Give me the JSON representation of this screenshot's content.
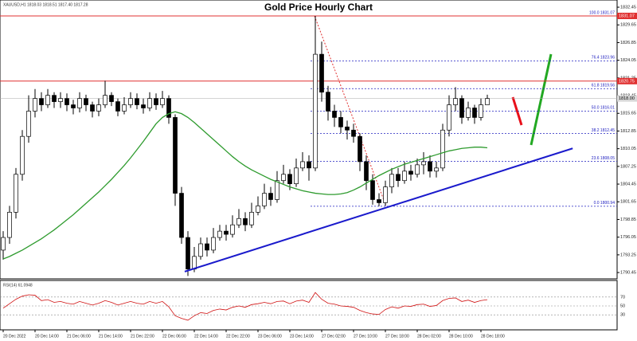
{
  "chart_data": {
    "type": "candlestick",
    "title": "Gold Price Hourly Chart",
    "info": "XAUUSD,H1  1818.03 1818.51 1817.40 1817.28",
    "categories": [
      "20 Dec 2022",
      null,
      null,
      null,
      null,
      "20 Dec 14:00",
      null,
      null,
      null,
      null,
      "21 Dec 06:00",
      null,
      null,
      null,
      null,
      "21 Dec 14:00",
      null,
      null,
      null,
      null,
      "21 Dec 22:00",
      null,
      null,
      null,
      null,
      "22 Dec 06:00",
      null,
      null,
      null,
      null,
      "22 Dec 14:00",
      null,
      null,
      null,
      null,
      "22 Dec 22:00",
      null,
      null,
      null,
      null,
      "23 Dec 06:00",
      null,
      null,
      null,
      null,
      "23 Dec 14:00",
      null,
      null,
      null,
      null,
      "27 Dec 02:00",
      null,
      null,
      null,
      null,
      "27 Dec 10:00",
      null,
      null,
      null,
      null,
      "27 Dec 18:00",
      null,
      null,
      null,
      null,
      "28 Dec 02:00",
      null,
      null,
      null,
      null,
      "28 Dec 10:00",
      null,
      null,
      null,
      null,
      "28 Dec 18:00",
      null
    ],
    "ohlc": {
      "up_color": "#ffffff",
      "down_color": "#000000",
      "open": [
        1794,
        1796,
        1800,
        1806,
        1812,
        1816,
        1818,
        1817,
        1818.5,
        1817.5,
        1818,
        1817,
        1816.5,
        1818,
        1817,
        1816,
        1817,
        1818.5,
        1817.5,
        1816,
        1817,
        1818,
        1817,
        1816.5,
        1818,
        1817,
        1818,
        1815,
        1803,
        1796,
        1791,
        1793,
        1795,
        1794,
        1796,
        1797,
        1796.5,
        1798,
        1799,
        1798,
        1800,
        1801,
        1803,
        1802,
        1805,
        1806,
        1804.5,
        1807,
        1808,
        1807,
        1825,
        1819,
        1816,
        1815,
        1813.5,
        1813,
        1812,
        1808,
        1805,
        1802,
        1801.5,
        1804,
        1806,
        1805,
        1806.5,
        1806,
        1807.5,
        1808,
        1806.5,
        1807,
        1813,
        1817,
        1818,
        1815,
        1816.5,
        1815,
        1817
      ],
      "high": [
        1797,
        1801,
        1807,
        1813,
        1818.5,
        1819.5,
        1819,
        1819.5,
        1819,
        1819,
        1818.8,
        1817.8,
        1819,
        1818.6,
        1817.5,
        1818,
        1820.8,
        1819,
        1818,
        1818.2,
        1819,
        1818.8,
        1818,
        1819,
        1818.8,
        1819.2,
        1818.5,
        1815.5,
        1804,
        1797,
        1794.5,
        1796,
        1796,
        1797.5,
        1798,
        1798,
        1799.5,
        1800.5,
        1800,
        1801.5,
        1802.5,
        1804.5,
        1804,
        1806.5,
        1807.5,
        1806.8,
        1808.5,
        1809.5,
        1809,
        1831.07,
        1827,
        1820,
        1817,
        1816,
        1814.5,
        1814,
        1812.5,
        1809,
        1806,
        1803,
        1805,
        1807,
        1807,
        1808,
        1807.5,
        1808.5,
        1809.5,
        1809,
        1808,
        1814,
        1818.5,
        1819.8,
        1818.5,
        1817.5,
        1817,
        1818,
        1818.6
      ],
      "low": [
        1792.5,
        1795,
        1799,
        1805,
        1811,
        1815,
        1816,
        1816.5,
        1816.5,
        1816.5,
        1816,
        1815.5,
        1815.8,
        1816,
        1815,
        1815.2,
        1816.5,
        1816.8,
        1815.2,
        1815.5,
        1816.5,
        1816.3,
        1815.6,
        1816,
        1816.2,
        1816.5,
        1814,
        1801,
        1795,
        1789.9,
        1790.5,
        1792.5,
        1793,
        1793.5,
        1795.5,
        1795.5,
        1796,
        1797.5,
        1797,
        1797.5,
        1799.5,
        1800.5,
        1801,
        1801.5,
        1804.5,
        1803.5,
        1804,
        1806.5,
        1805,
        1806.5,
        1817.5,
        1814.5,
        1813.5,
        1812.5,
        1811.5,
        1811,
        1806.5,
        1803.5,
        1801.2,
        1800.94,
        1801,
        1803,
        1804,
        1804.5,
        1805,
        1805.5,
        1806,
        1805.5,
        1805.5,
        1806.5,
        1812,
        1816,
        1814,
        1814.5,
        1814,
        1814.5,
        1817
      ],
      "close": [
        1796,
        1800,
        1806,
        1812,
        1816,
        1818,
        1817,
        1818.5,
        1817.5,
        1818,
        1817,
        1816.5,
        1818,
        1817,
        1816,
        1817,
        1818.5,
        1817.5,
        1816,
        1817,
        1818,
        1817,
        1816.5,
        1818,
        1817,
        1818,
        1815,
        1803,
        1796,
        1791,
        1793,
        1795,
        1794,
        1796,
        1797,
        1796.5,
        1798,
        1799,
        1798,
        1800,
        1801,
        1803,
        1802,
        1805,
        1806,
        1804.5,
        1807,
        1808,
        1807,
        1825,
        1819,
        1816,
        1815,
        1813.5,
        1813,
        1812,
        1808,
        1805,
        1802,
        1801.5,
        1804,
        1806,
        1805,
        1806.5,
        1806,
        1807.5,
        1808,
        1806.5,
        1807,
        1813,
        1817,
        1818,
        1815,
        1816.5,
        1815,
        1817,
        1818
      ]
    },
    "moving_average": {
      "color": "#2e9b2e",
      "values": [
        1792.6,
        1793.0,
        1793.5,
        1794.0,
        1794.6,
        1795.2,
        1795.8,
        1796.5,
        1797.2,
        1798.0,
        1798.8,
        1799.6,
        1800.5,
        1801.4,
        1802.3,
        1803.2,
        1804.2,
        1805.2,
        1806.3,
        1807.4,
        1808.6,
        1809.9,
        1811.2,
        1812.6,
        1814.0,
        1815.0,
        1815.6,
        1815.9,
        1815.6,
        1815.0,
        1814.2,
        1813.3,
        1812.4,
        1811.5,
        1810.6,
        1809.7,
        1808.8,
        1808.0,
        1807.3,
        1806.7,
        1806.2,
        1805.7,
        1805.2,
        1804.8,
        1804.4,
        1804.0,
        1803.7,
        1803.4,
        1803.2,
        1803.0,
        1802.9,
        1802.8,
        1802.8,
        1802.9,
        1803.1,
        1803.5,
        1804.0,
        1804.6,
        1805.2,
        1805.8,
        1806.3,
        1806.8,
        1807.2,
        1807.6,
        1807.9,
        1808.2,
        1808.5,
        1808.8,
        1809.1,
        1809.4,
        1809.7,
        1809.9,
        1810.1,
        1810.2,
        1810.3,
        1810.3,
        1810.2
      ]
    },
    "trendline": {
      "color": "#1a1acc",
      "x": [
        28.5,
        89.4
      ],
      "y": [
        1790.6,
        1810.1
      ]
    },
    "levels": {
      "color": "#e03030",
      "lines": [
        {
          "value": 1831.07,
          "label": "1831.07"
        },
        {
          "value": 1820.75,
          "label": "1820.75"
        }
      ]
    },
    "last_price": {
      "value": 1818,
      "label": "1818.00"
    },
    "fib": {
      "color": "#2020c0",
      "lines": [
        {
          "value": 1831.07,
          "label": "100.0 1831.07"
        },
        {
          "value": 1823.96,
          "label": "76.4 1823.96"
        },
        {
          "value": 1819.56,
          "label": "61.8 1819.56"
        },
        {
          "value": 1816.01,
          "label": "50.0 1816.01"
        },
        {
          "value": 1812.45,
          "label": "38.2 1812.45"
        },
        {
          "value": 1808.05,
          "label": "23.6 1808.05"
        },
        {
          "value": 1800.94,
          "label": "0.0 1800.94"
        }
      ]
    },
    "ylim": [
      1789.45,
      1833.59
    ],
    "yticks": [
      1790.45,
      1793.25,
      1796.05,
      1798.85,
      1801.65,
      1804.45,
      1807.25,
      1810.05,
      1812.85,
      1815.65,
      1818.45,
      1821.25,
      1824.05,
      1826.85,
      1829.65,
      1832.45
    ],
    "rsi": {
      "label": "RSI(14) 61.0948",
      "color": "#d01010",
      "ylim": [
        0,
        100
      ],
      "yticks": [
        70,
        50,
        30
      ],
      "values": [
        45,
        55,
        65,
        72,
        75,
        74,
        62,
        64,
        58,
        60,
        56,
        54,
        60,
        56,
        52,
        56,
        62,
        58,
        52,
        56,
        60,
        56,
        54,
        60,
        56,
        60,
        48,
        28,
        22,
        18,
        28,
        35,
        33,
        40,
        43,
        41,
        47,
        50,
        47,
        53,
        55,
        58,
        55,
        60,
        61,
        55,
        61,
        63,
        58,
        80,
        65,
        56,
        54,
        50,
        49,
        47,
        40,
        35,
        32,
        31,
        42,
        48,
        45,
        50,
        49,
        53,
        54,
        49,
        51,
        62,
        67,
        68,
        60,
        63,
        58,
        62,
        64
      ]
    }
  }
}
